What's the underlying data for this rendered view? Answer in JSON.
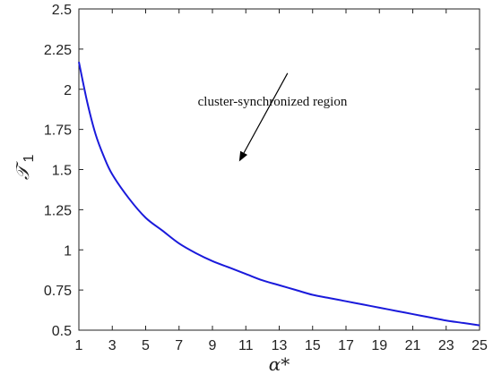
{
  "chart_data": {
    "type": "line",
    "title": "",
    "xlabel": "α*",
    "ylabel": "𝒯",
    "ylabel_sub": "1",
    "xlim": [
      1,
      25
    ],
    "ylim": [
      0.5,
      2.5
    ],
    "x_ticks": [
      "1",
      "3",
      "5",
      "7",
      "9",
      "11",
      "13",
      "15",
      "17",
      "19",
      "21",
      "23",
      "25"
    ],
    "y_ticks": [
      "0.5",
      "0.75",
      "1",
      "1.25",
      "1.5",
      "1.75",
      "2",
      "2.25",
      "2.5"
    ],
    "grid": false,
    "series": [
      {
        "color": "#1a1adb",
        "x": [
          1,
          1.5,
          2,
          2.5,
          3,
          4,
          5,
          6,
          7,
          8,
          9,
          10,
          11,
          12,
          13,
          14,
          15,
          16,
          17,
          18,
          19,
          20,
          21,
          22,
          23,
          24,
          25
        ],
        "y": [
          2.17,
          1.92,
          1.72,
          1.58,
          1.47,
          1.32,
          1.2,
          1.12,
          1.04,
          0.98,
          0.93,
          0.89,
          0.85,
          0.81,
          0.78,
          0.75,
          0.72,
          0.7,
          0.68,
          0.66,
          0.64,
          0.62,
          0.6,
          0.58,
          0.56,
          0.545,
          0.53
        ]
      }
    ],
    "annotation": {
      "text": "cluster-synchronized region",
      "arrow_from": [
        13.5,
        2.1
      ],
      "arrow_to": [
        10.6,
        1.55
      ]
    }
  }
}
